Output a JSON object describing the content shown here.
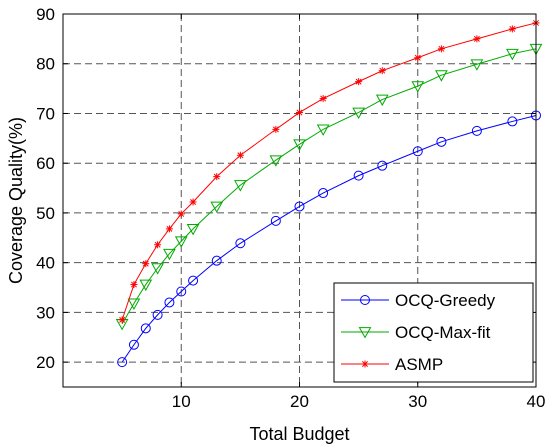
{
  "chart_data": {
    "type": "line",
    "xlabel": "Total Budget",
    "ylabel": "Coverage Quality(%)",
    "xlim": [
      0,
      40
    ],
    "ylim": [
      15,
      90
    ],
    "xticks": [
      10,
      20,
      30,
      40
    ],
    "yticks": [
      20,
      30,
      40,
      50,
      60,
      70,
      80,
      90
    ],
    "grid": true,
    "grid_style": "dashed",
    "legend_position": "bottom-right",
    "series": [
      {
        "name": "OCQ-Greedy",
        "color": "#0000ff",
        "marker": "circle",
        "x": [
          5,
          6,
          7,
          8,
          9,
          10,
          11,
          13,
          15,
          18,
          20,
          22,
          25,
          27,
          30,
          32,
          35,
          38,
          40
        ],
        "y": [
          20.0,
          23.5,
          26.8,
          29.5,
          32.0,
          34.2,
          36.4,
          40.4,
          43.9,
          48.4,
          51.3,
          54.0,
          57.5,
          59.5,
          62.4,
          64.3,
          66.5,
          68.4,
          69.6
        ]
      },
      {
        "name": "OCQ-Max-fit",
        "color": "#00aa00",
        "marker": "triangle-down",
        "x": [
          5,
          6,
          7,
          8,
          9,
          10,
          11,
          13,
          15,
          18,
          20,
          22,
          25,
          27,
          30,
          32,
          35,
          38,
          40
        ],
        "y": [
          27.7,
          31.8,
          35.6,
          38.9,
          41.8,
          44.3,
          46.8,
          51.3,
          55.6,
          60.6,
          63.8,
          66.8,
          70.2,
          72.8,
          75.5,
          77.7,
          79.9,
          82.0,
          83.0
        ]
      },
      {
        "name": "ASMP",
        "color": "#ff0000",
        "marker": "star",
        "x": [
          5,
          6,
          7,
          8,
          9,
          10,
          11,
          13,
          15,
          18,
          20,
          22,
          25,
          27,
          30,
          32,
          35,
          38,
          40
        ],
        "y": [
          28.5,
          35.6,
          39.8,
          43.6,
          46.8,
          49.8,
          52.2,
          57.3,
          61.6,
          66.8,
          70.2,
          73.0,
          76.4,
          78.6,
          81.2,
          83.0,
          85.0,
          87.0,
          88.2
        ]
      }
    ]
  }
}
